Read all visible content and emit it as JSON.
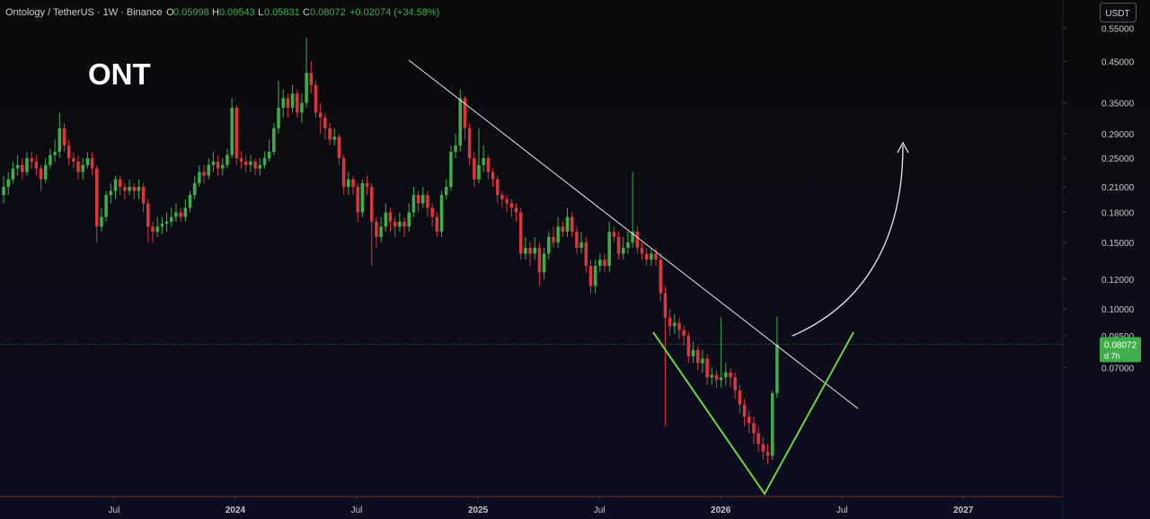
{
  "header": {
    "symbol": "Ontology / TetherUS · 1W · Binance",
    "ohlc_labels": [
      "O",
      "H",
      "L",
      "C"
    ],
    "change": "+0.02074 (+34.58%)",
    "currency": "USDT",
    "countdown": "d 7h"
  },
  "chart_data": {
    "type": "candlestick",
    "title": "ONT",
    "log": true,
    "grid": false,
    "up_color": "#3fae4a",
    "down_color": "#d9363e",
    "xlim": [
      2023.03,
      2027.41
    ],
    "xticks": [
      {
        "value": 2023.5,
        "label": "Jul"
      },
      2024,
      {
        "value": 2024.5,
        "label": "Jul"
      },
      2025,
      {
        "value": 2025.5,
        "label": "Jul"
      },
      2026,
      {
        "value": 2026.5,
        "label": "Jul"
      },
      2027
    ],
    "ylim": [
      0.032,
      0.654
    ],
    "yticks": [
      {
        "value": 0.55,
        "label": "0.55000"
      },
      {
        "value": 0.45,
        "label": "0.45000"
      },
      {
        "value": 0.35,
        "label": "0.35000"
      },
      {
        "value": 0.29,
        "label": "0.29000"
      },
      {
        "value": 0.25,
        "label": "0.25000"
      },
      {
        "value": 0.21,
        "label": "0.21000"
      },
      {
        "value": 0.18,
        "label": "0.18000"
      },
      {
        "value": 0.15,
        "label": "0.15000"
      },
      {
        "value": 0.12,
        "label": "0.12000"
      },
      {
        "value": 0.1,
        "label": "0.10000"
      },
      {
        "value": 0.085,
        "label": "0.08500"
      },
      {
        "value": 0.07,
        "label": "0.07000"
      }
    ],
    "x": [
      2023.045,
      2023.0642,
      2023.0834,
      2023.1026,
      2023.1218,
      2023.141,
      2023.1602,
      2023.1794,
      2023.1986,
      2023.2178,
      2023.237,
      2023.2562,
      2023.2754,
      2023.2946,
      2023.3138,
      2023.333,
      2023.3522,
      2023.3714,
      2023.3906,
      2023.4098,
      2023.429,
      2023.4482,
      2023.4674,
      2023.4866,
      2023.5058,
      2023.525,
      2023.5442,
      2023.5634,
      2023.5826,
      2023.6018,
      2023.621,
      2023.6402,
      2023.6594,
      2023.6786,
      2023.6978,
      2023.717,
      2023.7362,
      2023.7554,
      2023.7746,
      2023.7938,
      2023.813,
      2023.8322,
      2023.8514,
      2023.8706,
      2023.8898,
      2023.909,
      2023.9282,
      2023.9474,
      2023.9666,
      2023.9858,
      2024.005,
      2024.0242,
      2024.0434,
      2024.0626,
      2024.0818,
      2024.101,
      2024.1202,
      2024.1394,
      2024.1586,
      2024.1778,
      2024.197,
      2024.2162,
      2024.2354,
      2024.2546,
      2024.2738,
      2024.293,
      2024.3122,
      2024.3314,
      2024.3506,
      2024.3698,
      2024.389,
      2024.4082,
      2024.4274,
      2024.4466,
      2024.4658,
      2024.485,
      2024.5042,
      2024.5234,
      2024.5426,
      2024.5618,
      2024.581,
      2024.6002,
      2024.6194,
      2024.6386,
      2024.6578,
      2024.677,
      2024.6962,
      2024.7154,
      2024.7346,
      2024.7538,
      2024.773,
      2024.7922,
      2024.8114,
      2024.8306,
      2024.8498,
      2024.869,
      2024.8882,
      2024.9074,
      2024.9266,
      2024.9458,
      2024.965,
      2024.9842,
      2025.0034,
      2025.0226,
      2025.0418,
      2025.061,
      2025.0802,
      2025.0994,
      2025.1186,
      2025.1378,
      2025.157,
      2025.1762,
      2025.1954,
      2025.2146,
      2025.2338,
      2025.253,
      2025.2722,
      2025.2914,
      2025.3106,
      2025.3298,
      2025.349,
      2025.3682,
      2025.3874,
      2025.4066,
      2025.4258,
      2025.445,
      2025.4642,
      2025.4834,
      2025.5026,
      2025.5218,
      2025.541,
      2025.5602,
      2025.5794,
      2025.5986,
      2025.6178,
      2025.637,
      2025.6562,
      2025.6754,
      2025.6946,
      2025.7138,
      2025.733,
      2025.7522,
      2025.7714,
      2025.7906,
      2025.8098,
      2025.829,
      2025.8482,
      2025.8674,
      2025.8866,
      2025.9058,
      2025.925,
      2025.9442,
      2025.9634,
      2025.9826,
      2026.0018,
      2026.021,
      2026.0402,
      2026.0594,
      2026.0786,
      2026.0978,
      2026.117,
      2026.1362,
      2026.1554,
      2026.1746,
      2026.1938,
      2026.213,
      2026.2322
    ],
    "open": [
      0.2,
      0.21,
      0.22,
      0.235,
      0.24,
      0.23,
      0.25,
      0.245,
      0.235,
      0.22,
      0.24,
      0.255,
      0.26,
      0.3,
      0.27,
      0.25,
      0.245,
      0.23,
      0.24,
      0.25,
      0.235,
      0.165,
      0.175,
      0.2,
      0.205,
      0.22,
      0.21,
      0.205,
      0.21,
      0.205,
      0.21,
      0.19,
      0.165,
      0.16,
      0.165,
      0.168,
      0.17,
      0.175,
      0.18,
      0.175,
      0.185,
      0.2,
      0.215,
      0.23,
      0.225,
      0.24,
      0.245,
      0.235,
      0.24,
      0.255,
      0.34,
      0.25,
      0.245,
      0.24,
      0.245,
      0.235,
      0.24,
      0.25,
      0.26,
      0.3,
      0.34,
      0.36,
      0.34,
      0.37,
      0.33,
      0.35,
      0.42,
      0.39,
      0.33,
      0.32,
      0.3,
      0.28,
      0.285,
      0.25,
      0.21,
      0.22,
      0.21,
      0.18,
      0.215,
      0.21,
      0.17,
      0.155,
      0.165,
      0.18,
      0.17,
      0.165,
      0.17,
      0.165,
      0.18,
      0.2,
      0.19,
      0.2,
      0.185,
      0.175,
      0.16,
      0.2,
      0.21,
      0.26,
      0.27,
      0.36,
      0.3,
      0.25,
      0.22,
      0.24,
      0.25,
      0.23,
      0.22,
      0.2,
      0.195,
      0.19,
      0.185,
      0.18,
      0.14,
      0.145,
      0.14,
      0.145,
      0.125,
      0.14,
      0.155,
      0.15,
      0.165,
      0.16,
      0.175,
      0.16,
      0.145,
      0.15,
      0.13,
      0.115,
      0.13,
      0.135,
      0.13,
      0.16,
      0.155,
      0.14,
      0.145,
      0.15,
      0.16,
      0.145,
      0.14,
      0.135,
      0.14,
      0.135,
      0.11,
      0.095,
      0.09,
      0.092,
      0.088,
      0.085,
      0.075,
      0.078,
      0.072,
      0.074,
      0.066,
      0.067,
      0.065,
      0.066,
      0.068,
      0.066,
      0.061,
      0.056,
      0.052,
      0.05,
      0.047,
      0.044,
      0.042,
      0.041,
      0.05998
    ],
    "high": [
      0.225,
      0.23,
      0.245,
      0.255,
      0.25,
      0.26,
      0.26,
      0.255,
      0.24,
      0.25,
      0.265,
      0.28,
      0.33,
      0.31,
      0.28,
      0.26,
      0.255,
      0.25,
      0.26,
      0.26,
      0.24,
      0.185,
      0.205,
      0.215,
      0.225,
      0.225,
      0.215,
      0.22,
      0.215,
      0.22,
      0.215,
      0.195,
      0.17,
      0.175,
      0.175,
      0.18,
      0.185,
      0.19,
      0.185,
      0.195,
      0.205,
      0.225,
      0.24,
      0.24,
      0.25,
      0.26,
      0.255,
      0.25,
      0.265,
      0.36,
      0.345,
      0.26,
      0.255,
      0.255,
      0.25,
      0.25,
      0.26,
      0.28,
      0.31,
      0.4,
      0.38,
      0.37,
      0.39,
      0.38,
      0.37,
      0.52,
      0.45,
      0.4,
      0.35,
      0.33,
      0.31,
      0.3,
      0.29,
      0.255,
      0.23,
      0.225,
      0.215,
      0.22,
      0.225,
      0.215,
      0.175,
      0.175,
      0.19,
      0.185,
      0.175,
      0.18,
      0.175,
      0.19,
      0.21,
      0.205,
      0.21,
      0.205,
      0.19,
      0.18,
      0.205,
      0.22,
      0.27,
      0.29,
      0.38,
      0.365,
      0.31,
      0.26,
      0.3,
      0.27,
      0.255,
      0.235,
      0.225,
      0.205,
      0.2,
      0.195,
      0.19,
      0.185,
      0.155,
      0.15,
      0.155,
      0.15,
      0.145,
      0.16,
      0.165,
      0.175,
      0.17,
      0.185,
      0.18,
      0.165,
      0.16,
      0.155,
      0.135,
      0.135,
      0.14,
      0.14,
      0.17,
      0.165,
      0.16,
      0.155,
      0.16,
      0.23,
      0.165,
      0.15,
      0.145,
      0.145,
      0.145,
      0.14,
      0.115,
      0.1,
      0.097,
      0.095,
      0.09,
      0.087,
      0.082,
      0.08,
      0.078,
      0.076,
      0.07,
      0.069,
      0.095,
      0.072,
      0.07,
      0.068,
      0.063,
      0.058,
      0.054,
      0.052,
      0.049,
      0.046,
      0.044,
      0.061,
      0.09543
    ],
    "low": [
      0.19,
      0.2,
      0.215,
      0.225,
      0.22,
      0.225,
      0.235,
      0.225,
      0.205,
      0.215,
      0.235,
      0.245,
      0.25,
      0.26,
      0.24,
      0.235,
      0.22,
      0.22,
      0.235,
      0.225,
      0.15,
      0.16,
      0.17,
      0.19,
      0.195,
      0.2,
      0.195,
      0.2,
      0.195,
      0.195,
      0.18,
      0.15,
      0.15,
      0.155,
      0.158,
      0.16,
      0.165,
      0.17,
      0.17,
      0.17,
      0.18,
      0.195,
      0.21,
      0.215,
      0.22,
      0.23,
      0.225,
      0.225,
      0.235,
      0.25,
      0.24,
      0.235,
      0.23,
      0.23,
      0.225,
      0.225,
      0.235,
      0.245,
      0.255,
      0.29,
      0.32,
      0.32,
      0.33,
      0.32,
      0.31,
      0.34,
      0.37,
      0.32,
      0.29,
      0.28,
      0.27,
      0.27,
      0.24,
      0.2,
      0.2,
      0.2,
      0.17,
      0.175,
      0.2,
      0.13,
      0.145,
      0.15,
      0.16,
      0.16,
      0.155,
      0.16,
      0.155,
      0.16,
      0.175,
      0.18,
      0.185,
      0.175,
      0.165,
      0.155,
      0.155,
      0.195,
      0.205,
      0.25,
      0.26,
      0.28,
      0.24,
      0.21,
      0.215,
      0.23,
      0.22,
      0.21,
      0.19,
      0.185,
      0.18,
      0.175,
      0.17,
      0.135,
      0.135,
      0.13,
      0.135,
      0.115,
      0.12,
      0.135,
      0.145,
      0.145,
      0.155,
      0.155,
      0.155,
      0.14,
      0.14,
      0.125,
      0.11,
      0.11,
      0.125,
      0.125,
      0.125,
      0.15,
      0.135,
      0.135,
      0.14,
      0.145,
      0.14,
      0.135,
      0.13,
      0.13,
      0.13,
      0.105,
      0.049,
      0.085,
      0.086,
      0.083,
      0.08,
      0.072,
      0.072,
      0.069,
      0.068,
      0.063,
      0.063,
      0.062,
      0.062,
      0.063,
      0.062,
      0.058,
      0.053,
      0.049,
      0.047,
      0.044,
      0.042,
      0.04,
      0.039,
      0.04,
      0.05831
    ],
    "close": [
      0.21,
      0.22,
      0.235,
      0.24,
      0.23,
      0.25,
      0.245,
      0.235,
      0.22,
      0.24,
      0.255,
      0.26,
      0.3,
      0.27,
      0.25,
      0.245,
      0.23,
      0.24,
      0.25,
      0.235,
      0.165,
      0.175,
      0.2,
      0.205,
      0.22,
      0.21,
      0.205,
      0.21,
      0.205,
      0.21,
      0.19,
      0.165,
      0.16,
      0.165,
      0.168,
      0.17,
      0.175,
      0.18,
      0.175,
      0.185,
      0.2,
      0.215,
      0.23,
      0.225,
      0.24,
      0.245,
      0.235,
      0.24,
      0.255,
      0.34,
      0.25,
      0.245,
      0.24,
      0.245,
      0.235,
      0.24,
      0.25,
      0.26,
      0.3,
      0.34,
      0.36,
      0.34,
      0.37,
      0.33,
      0.35,
      0.42,
      0.39,
      0.33,
      0.32,
      0.3,
      0.28,
      0.285,
      0.25,
      0.21,
      0.22,
      0.21,
      0.18,
      0.215,
      0.21,
      0.17,
      0.155,
      0.165,
      0.18,
      0.17,
      0.165,
      0.17,
      0.165,
      0.18,
      0.2,
      0.19,
      0.2,
      0.185,
      0.175,
      0.16,
      0.2,
      0.21,
      0.26,
      0.27,
      0.36,
      0.3,
      0.25,
      0.22,
      0.24,
      0.25,
      0.23,
      0.22,
      0.2,
      0.195,
      0.19,
      0.185,
      0.18,
      0.14,
      0.145,
      0.14,
      0.145,
      0.125,
      0.14,
      0.155,
      0.15,
      0.165,
      0.16,
      0.175,
      0.16,
      0.145,
      0.15,
      0.13,
      0.115,
      0.13,
      0.135,
      0.13,
      0.16,
      0.155,
      0.14,
      0.145,
      0.15,
      0.16,
      0.145,
      0.14,
      0.135,
      0.14,
      0.135,
      0.11,
      0.095,
      0.09,
      0.092,
      0.088,
      0.085,
      0.075,
      0.078,
      0.072,
      0.074,
      0.066,
      0.067,
      0.065,
      0.066,
      0.068,
      0.066,
      0.061,
      0.056,
      0.052,
      0.05,
      0.047,
      0.044,
      0.042,
      0.041,
      0.05998,
      0.08072
    ]
  }
}
